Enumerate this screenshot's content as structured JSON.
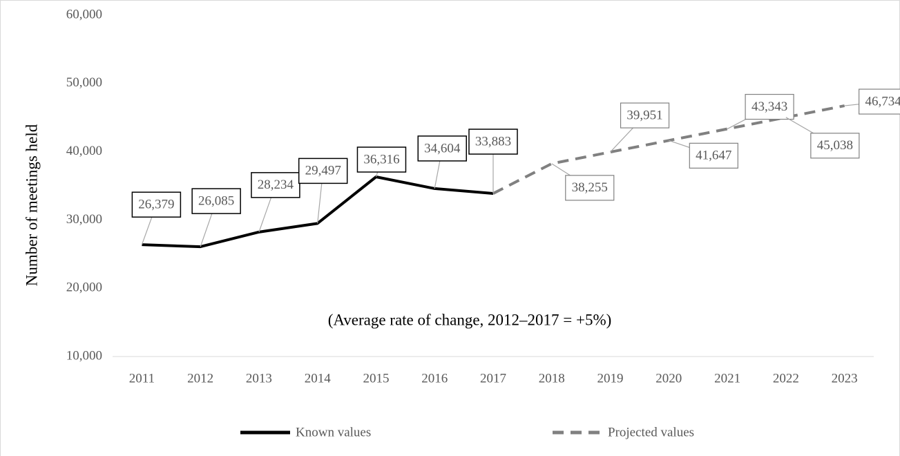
{
  "chart_data": {
    "type": "line",
    "y_label": "Number of meetings held",
    "annotation": "(Average rate of change, 2012–2017 = +5%)",
    "categories": [
      "2011",
      "2012",
      "2013",
      "2014",
      "2015",
      "2016",
      "2017",
      "2018",
      "2019",
      "2020",
      "2021",
      "2022",
      "2023"
    ],
    "series": [
      {
        "name": "Known values",
        "color": "#000000",
        "dashed": false,
        "values": [
          26379,
          26085,
          28234,
          29497,
          36316,
          34604,
          33883,
          null,
          null,
          null,
          null,
          null,
          null
        ],
        "value_labels": [
          "26,379",
          "26,085",
          "28,234",
          "29,497",
          "36,316",
          "34,604",
          "33,883",
          null,
          null,
          null,
          null,
          null,
          null
        ]
      },
      {
        "name": "Projected values",
        "color": "#808080",
        "dashed": true,
        "values": [
          null,
          null,
          null,
          null,
          null,
          null,
          33883,
          38255,
          39951,
          41647,
          43343,
          45038,
          46734
        ],
        "value_labels": [
          null,
          null,
          null,
          null,
          null,
          null,
          null,
          "38,255",
          "39,951",
          "41,647",
          "43,343",
          "45,038",
          "46,734"
        ]
      }
    ],
    "ylim": [
      10000,
      60000
    ],
    "yticks": [
      {
        "value": 10000,
        "label": "10,000"
      },
      {
        "value": 20000,
        "label": "20,000"
      },
      {
        "value": 30000,
        "label": "30,000"
      },
      {
        "value": 40000,
        "label": "40,000"
      },
      {
        "value": 50000,
        "label": "50,000"
      },
      {
        "value": 60000,
        "label": "60,000"
      }
    ],
    "grid": false,
    "legend": "bottom"
  }
}
